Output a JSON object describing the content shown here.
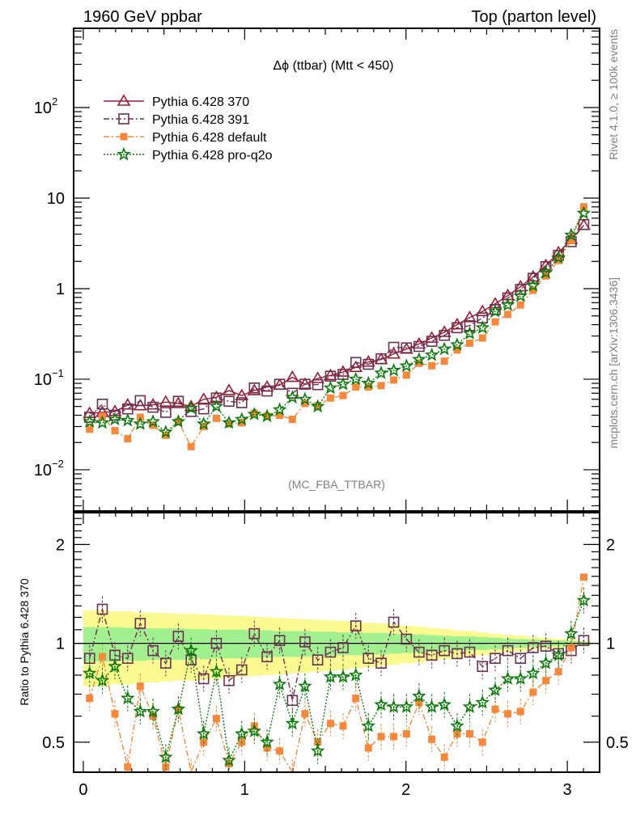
{
  "chart_data": [
    {
      "panel": "main",
      "type": "line",
      "title": "Δϕ (ttbar) (Mtt < 450)",
      "header_left": "1960 GeV ppbar",
      "header_right": "Top (parton level)",
      "side_label_top": "Rivet 4.1.0, ≥ 100k events",
      "side_label_bottom": "mcplots.cern.ch [arXiv:1306.3436]",
      "analysis_label": "(MC_FBA_TTBAR)",
      "xlabel": "",
      "ylabel": "",
      "yscale": "log",
      "xlim": [
        -0.06,
        3.2
      ],
      "ylim": [
        0.0035,
        750
      ],
      "y_ticks": [
        {
          "value": 100,
          "label": "10",
          "sup": "2"
        },
        {
          "value": 10,
          "label": "10",
          "sup": ""
        },
        {
          "value": 1,
          "label": "1",
          "sup": ""
        },
        {
          "value": 0.1,
          "label": "10",
          "sup": "−1"
        },
        {
          "value": 0.01,
          "label": "10",
          "sup": "−2"
        }
      ],
      "legend_position": "top-left",
      "x": [
        0.039,
        0.118,
        0.196,
        0.275,
        0.353,
        0.432,
        0.511,
        0.589,
        0.668,
        0.746,
        0.825,
        0.903,
        0.982,
        1.06,
        1.139,
        1.217,
        1.296,
        1.374,
        1.453,
        1.532,
        1.61,
        1.689,
        1.767,
        1.846,
        1.924,
        2.003,
        2.081,
        2.16,
        2.238,
        2.317,
        2.395,
        2.474,
        2.553,
        2.631,
        2.71,
        2.788,
        2.867,
        2.945,
        3.024,
        3.102
      ],
      "series": [
        {
          "name": "Pythia 6.428 370",
          "color": "#9b1b30",
          "marker": "triangle-open",
          "line": "solid",
          "values": [
            0.042,
            0.043,
            0.044,
            0.052,
            0.051,
            0.052,
            0.056,
            0.054,
            0.05,
            0.06,
            0.063,
            0.075,
            0.066,
            0.075,
            0.082,
            0.086,
            0.105,
            0.088,
            0.102,
            0.11,
            0.12,
            0.135,
            0.155,
            0.165,
            0.19,
            0.215,
            0.245,
            0.285,
            0.33,
            0.4,
            0.48,
            0.56,
            0.68,
            0.84,
            1.05,
            1.35,
            1.8,
            2.5,
            3.5,
            5.0
          ]
        },
        {
          "name": "Pythia 6.428 391",
          "color": "#6b3050",
          "marker": "square-open",
          "line": "dash-dot",
          "values": [
            0.038,
            0.053,
            0.04,
            0.047,
            0.058,
            0.049,
            0.043,
            0.057,
            0.044,
            0.047,
            0.062,
            0.057,
            0.055,
            0.08,
            0.074,
            0.088,
            0.07,
            0.088,
            0.087,
            0.108,
            0.113,
            0.153,
            0.146,
            0.168,
            0.225,
            0.222,
            0.23,
            0.262,
            0.305,
            0.37,
            0.39,
            0.475,
            0.588,
            0.79,
            0.98,
            1.3,
            1.75,
            2.33,
            3.3,
            5.1
          ]
        },
        {
          "name": "Pythia 6.428 default",
          "color": "#f5883a",
          "marker": "square-filled",
          "line": "dash-dot",
          "values": [
            0.028,
            0.039,
            0.027,
            0.022,
            0.038,
            0.031,
            0.024,
            0.034,
            0.018,
            0.03,
            0.037,
            0.032,
            0.033,
            0.042,
            0.039,
            0.04,
            0.036,
            0.054,
            0.051,
            0.062,
            0.066,
            0.082,
            0.082,
            0.085,
            0.098,
            0.111,
            0.15,
            0.141,
            0.158,
            0.21,
            0.25,
            0.285,
            0.43,
            0.52,
            0.66,
            0.96,
            1.38,
            2.05,
            3.4,
            8.0
          ]
        },
        {
          "name": "Pythia 6.428 pro-q2o",
          "color": "#0a7a0a",
          "marker": "star",
          "line": "dotted",
          "values": [
            0.034,
            0.033,
            0.036,
            0.035,
            0.032,
            0.034,
            0.026,
            0.034,
            0.048,
            0.032,
            0.05,
            0.033,
            0.036,
            0.041,
            0.039,
            0.046,
            0.063,
            0.06,
            0.05,
            0.08,
            0.088,
            0.1,
            0.09,
            0.117,
            0.125,
            0.14,
            0.165,
            0.185,
            0.215,
            0.24,
            0.32,
            0.37,
            0.56,
            0.66,
            0.83,
            1.08,
            1.5,
            2.2,
            3.9,
            6.8
          ]
        }
      ]
    },
    {
      "panel": "ratio",
      "type": "line",
      "ylabel": "Ratio to Pythia 6.428 370",
      "yscale": "log",
      "ylim": [
        0.405,
        2.5
      ],
      "xlim": [
        -0.06,
        3.2
      ],
      "x_ticks": [
        {
          "value": 0,
          "label": "0"
        },
        {
          "value": 1,
          "label": "1"
        },
        {
          "value": 2,
          "label": "2"
        },
        {
          "value": 3,
          "label": "3"
        }
      ],
      "y_ticks": [
        {
          "value": 2,
          "label": "2"
        },
        {
          "value": 1,
          "label": "1"
        },
        {
          "value": 0.5,
          "label": "0.5"
        }
      ],
      "reference_line": 1,
      "band_inner_color": "#a0f090",
      "band_outer_color": "#fafa90",
      "band_inner_halfwidth": [
        0.12,
        0.12,
        0.12,
        0.115,
        0.115,
        0.11,
        0.11,
        0.11,
        0.105,
        0.105,
        0.1,
        0.1,
        0.1,
        0.095,
        0.095,
        0.09,
        0.09,
        0.09,
        0.085,
        0.085,
        0.08,
        0.08,
        0.075,
        0.075,
        0.07,
        0.065,
        0.065,
        0.06,
        0.055,
        0.05,
        0.05,
        0.045,
        0.04,
        0.035,
        0.03,
        0.027,
        0.024,
        0.02,
        0.017,
        0.012
      ],
      "band_outer_halfwidth": [
        0.26,
        0.26,
        0.25,
        0.25,
        0.24,
        0.24,
        0.235,
        0.23,
        0.23,
        0.225,
        0.22,
        0.215,
        0.21,
        0.205,
        0.2,
        0.195,
        0.19,
        0.185,
        0.18,
        0.175,
        0.17,
        0.16,
        0.155,
        0.15,
        0.14,
        0.13,
        0.125,
        0.115,
        0.105,
        0.095,
        0.09,
        0.08,
        0.07,
        0.06,
        0.055,
        0.045,
        0.04,
        0.033,
        0.025,
        0.018
      ],
      "series": [
        {
          "name": "Pythia 6.428 391",
          "color": "#6b3050",
          "marker": "square-open",
          "line": "dash-dot",
          "values": [
            0.9,
            1.27,
            0.92,
            0.9,
            1.15,
            0.95,
            0.87,
            1.05,
            0.89,
            0.78,
            1.0,
            0.77,
            0.83,
            1.07,
            0.91,
            1.02,
            0.67,
            1.01,
            0.89,
            0.94,
            0.97,
            1.13,
            0.9,
            0.87,
            1.16,
            1.03,
            0.94,
            0.92,
            0.95,
            0.93,
            0.94,
            0.85,
            0.9,
            0.95,
            0.9,
            0.97,
            0.98,
            0.93,
            0.95,
            1.02
          ]
        },
        {
          "name": "Pythia 6.428 default",
          "color": "#f5883a",
          "marker": "square-filled",
          "line": "dash-dot",
          "values": [
            0.68,
            0.91,
            0.61,
            0.42,
            0.74,
            0.6,
            0.42,
            0.63,
            0.37,
            0.5,
            0.59,
            0.43,
            0.5,
            0.56,
            0.48,
            0.47,
            0.35,
            0.61,
            0.5,
            0.57,
            0.56,
            0.68,
            0.48,
            0.52,
            0.52,
            0.53,
            0.66,
            0.51,
            0.45,
            0.53,
            0.53,
            0.5,
            0.63,
            0.61,
            0.62,
            0.71,
            0.77,
            0.82,
            0.97,
            1.59
          ]
        },
        {
          "name": "Pythia 6.428 pro-q2o",
          "color": "#0a7a0a",
          "marker": "star",
          "line": "dotted",
          "values": [
            0.81,
            0.77,
            0.85,
            0.68,
            0.62,
            0.62,
            0.45,
            0.63,
            0.95,
            0.53,
            0.82,
            0.44,
            0.53,
            0.54,
            0.5,
            0.75,
            0.57,
            0.74,
            0.47,
            0.79,
            0.79,
            0.8,
            0.56,
            0.65,
            0.64,
            0.64,
            0.69,
            0.64,
            0.65,
            0.56,
            0.64,
            0.66,
            0.72,
            0.78,
            0.78,
            0.81,
            0.87,
            0.92,
            1.07,
            1.35
          ]
        }
      ]
    }
  ]
}
